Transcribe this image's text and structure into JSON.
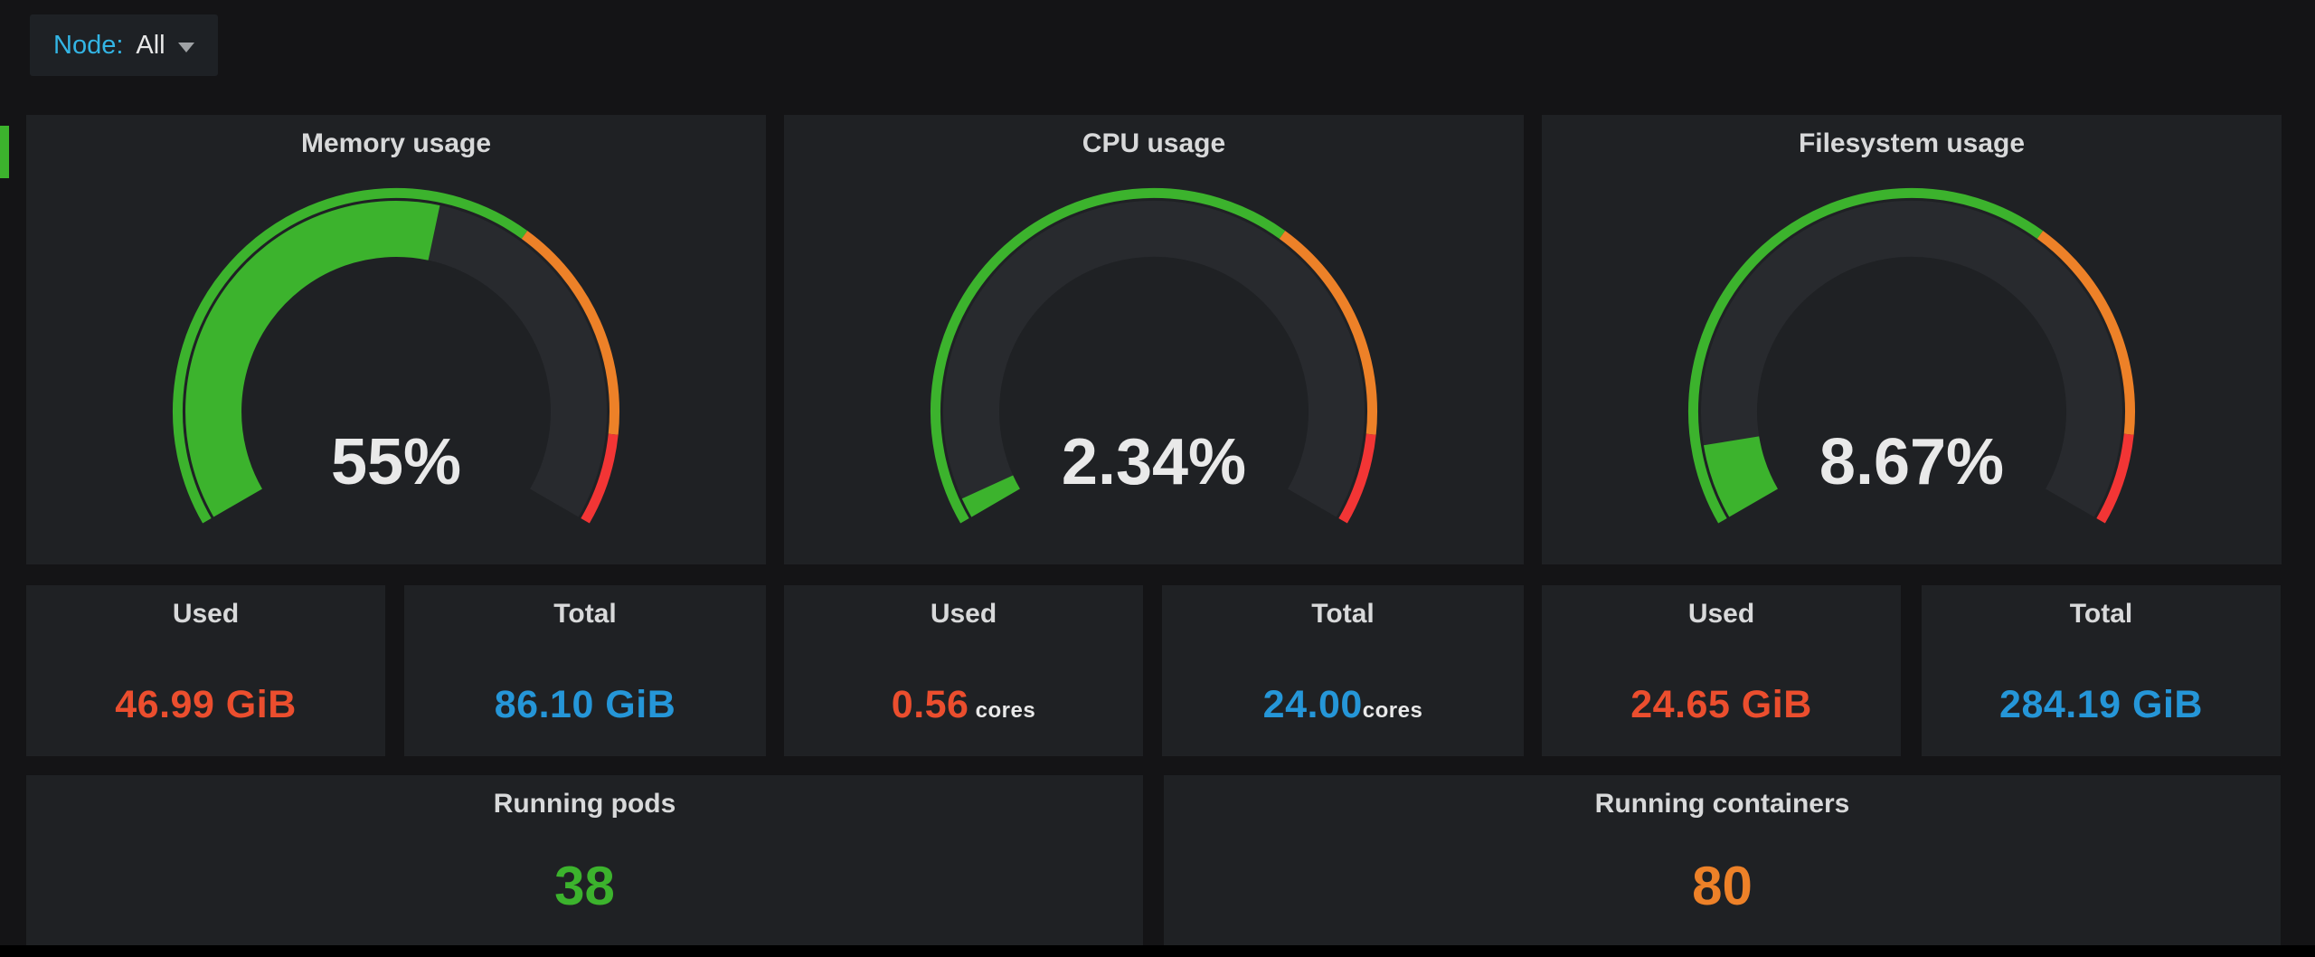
{
  "toolbar": {
    "node_label": "Node:",
    "node_value": "All",
    "caret_icon": "chevron-down"
  },
  "colors": {
    "page_bg": "#141416",
    "panel_bg": "#1f2124",
    "title_text": "#d8d9da",
    "value_text": "#e9e9e9",
    "accent_cyan": "#33b5e5",
    "green": "#3cb32d",
    "orange": "#ed8128",
    "red": "#f23535",
    "blue": "#2596d8",
    "used_red": "#eb4e2e",
    "gauge_track": "#282a2e"
  },
  "chart_data": {
    "gauges": [
      {
        "type": "gauge",
        "title": "Memory usage",
        "value": 55,
        "display": "55%",
        "min": 0,
        "max": 100,
        "fill_color": "#3cb32d",
        "steps": [
          {
            "from": 0,
            "to": 65,
            "color": "#3cb32d"
          },
          {
            "from": 65,
            "to": 90,
            "color": "#ed8128"
          },
          {
            "from": 90,
            "to": 100,
            "color": "#f23535"
          }
        ]
      },
      {
        "type": "gauge",
        "title": "CPU usage",
        "value": 2.34,
        "display": "2.34%",
        "min": 0,
        "max": 100,
        "fill_color": "#3cb32d",
        "steps": [
          {
            "from": 0,
            "to": 65,
            "color": "#3cb32d"
          },
          {
            "from": 65,
            "to": 90,
            "color": "#ed8128"
          },
          {
            "from": 90,
            "to": 100,
            "color": "#f23535"
          }
        ]
      },
      {
        "type": "gauge",
        "title": "Filesystem usage",
        "value": 8.67,
        "display": "8.67%",
        "min": 0,
        "max": 100,
        "fill_color": "#3cb32d",
        "steps": [
          {
            "from": 0,
            "to": 65,
            "color": "#3cb32d"
          },
          {
            "from": 65,
            "to": 90,
            "color": "#ed8128"
          },
          {
            "from": 90,
            "to": 100,
            "color": "#f23535"
          }
        ]
      }
    ],
    "stats": [
      {
        "type": "stat",
        "title": "Used",
        "value": 46.99,
        "display": "46.99 GiB",
        "suffix": "",
        "color": "#eb4e2e"
      },
      {
        "type": "stat",
        "title": "Total",
        "value": 86.1,
        "display": "86.10 GiB",
        "suffix": "",
        "color": "#2596d8"
      },
      {
        "type": "stat",
        "title": "Used",
        "value": 0.56,
        "display": "0.56",
        "suffix": " cores",
        "color": "#eb4e2e"
      },
      {
        "type": "stat",
        "title": "Total",
        "value": 24.0,
        "display": "24.00",
        "suffix": "cores",
        "color": "#2596d8"
      },
      {
        "type": "stat",
        "title": "Used",
        "value": 24.65,
        "display": "24.65 GiB",
        "suffix": "",
        "color": "#eb4e2e"
      },
      {
        "type": "stat",
        "title": "Total",
        "value": 284.19,
        "display": "284.19 GiB",
        "suffix": "",
        "color": "#2596d8"
      }
    ],
    "counters": [
      {
        "type": "stat",
        "title": "Running pods",
        "value": 38,
        "display": "38",
        "color": "#3cb32d"
      },
      {
        "type": "stat",
        "title": "Running containers",
        "value": 80,
        "display": "80",
        "color": "#ed8128"
      }
    ]
  }
}
